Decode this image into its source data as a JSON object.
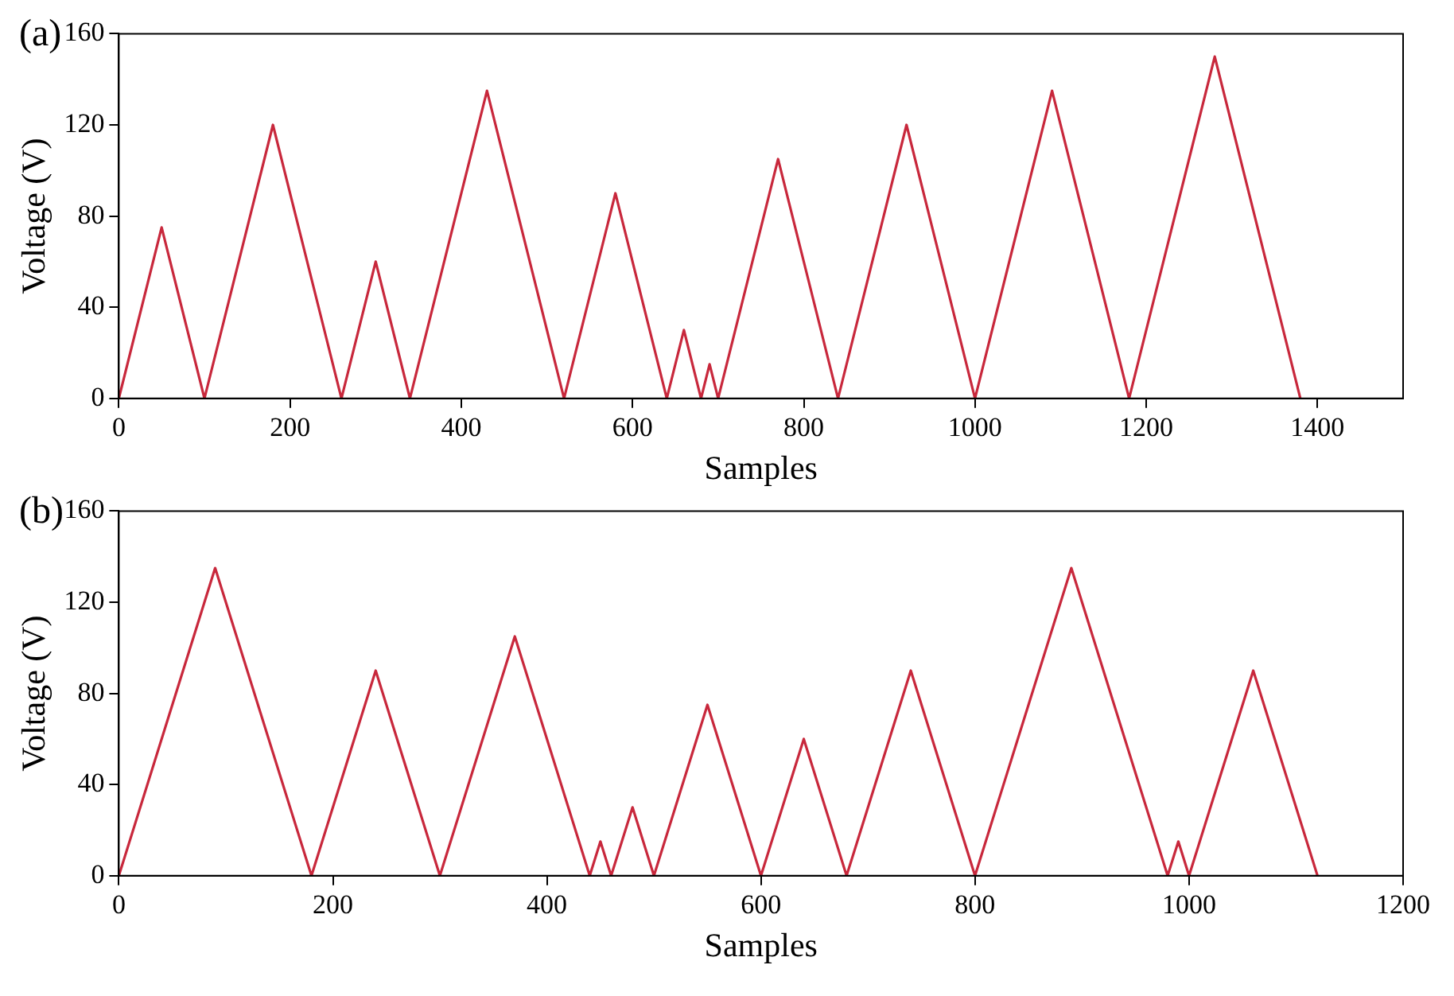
{
  "chart_data": [
    {
      "type": "line",
      "title": "(a)",
      "xlabel": "Samples",
      "ylabel": "Voltage (V)",
      "xlim": [
        0,
        1500
      ],
      "xticks": [
        0,
        200,
        400,
        600,
        800,
        1000,
        1200,
        1400
      ],
      "ylim": [
        0,
        160
      ],
      "yticks": [
        0,
        40,
        80,
        120,
        160
      ],
      "grid": false,
      "legend": false,
      "marker": "none",
      "line_style": "solid",
      "series": [
        {
          "color": "#c8283c",
          "x": [
            0,
            50,
            100,
            180,
            260,
            300,
            340,
            430,
            520,
            580,
            640,
            660,
            680,
            690,
            700,
            770,
            840,
            920,
            1000,
            1090,
            1180,
            1280,
            1380
          ],
          "values": [
            0,
            75,
            0,
            120,
            0,
            60,
            0,
            135,
            0,
            90,
            0,
            30,
            0,
            15,
            0,
            105,
            0,
            120,
            0,
            135,
            0,
            150,
            0
          ]
        }
      ]
    },
    {
      "type": "line",
      "title": "(b)",
      "xlabel": "Samples",
      "ylabel": "Voltage (V)",
      "xlim": [
        0,
        1200
      ],
      "xticks": [
        0,
        200,
        400,
        600,
        800,
        1000,
        1200
      ],
      "ylim": [
        0,
        160
      ],
      "yticks": [
        0,
        40,
        80,
        120,
        160
      ],
      "grid": false,
      "legend": false,
      "marker": "none",
      "line_style": "solid",
      "series": [
        {
          "color": "#c8283c",
          "x": [
            0,
            90,
            180,
            240,
            300,
            370,
            440,
            450,
            460,
            480,
            500,
            550,
            600,
            640,
            680,
            740,
            800,
            890,
            980,
            990,
            1000,
            1060,
            1120
          ],
          "values": [
            0,
            135,
            0,
            90,
            0,
            105,
            0,
            15,
            0,
            30,
            0,
            75,
            0,
            60,
            0,
            90,
            0,
            135,
            0,
            15,
            0,
            90,
            0
          ]
        }
      ]
    }
  ]
}
